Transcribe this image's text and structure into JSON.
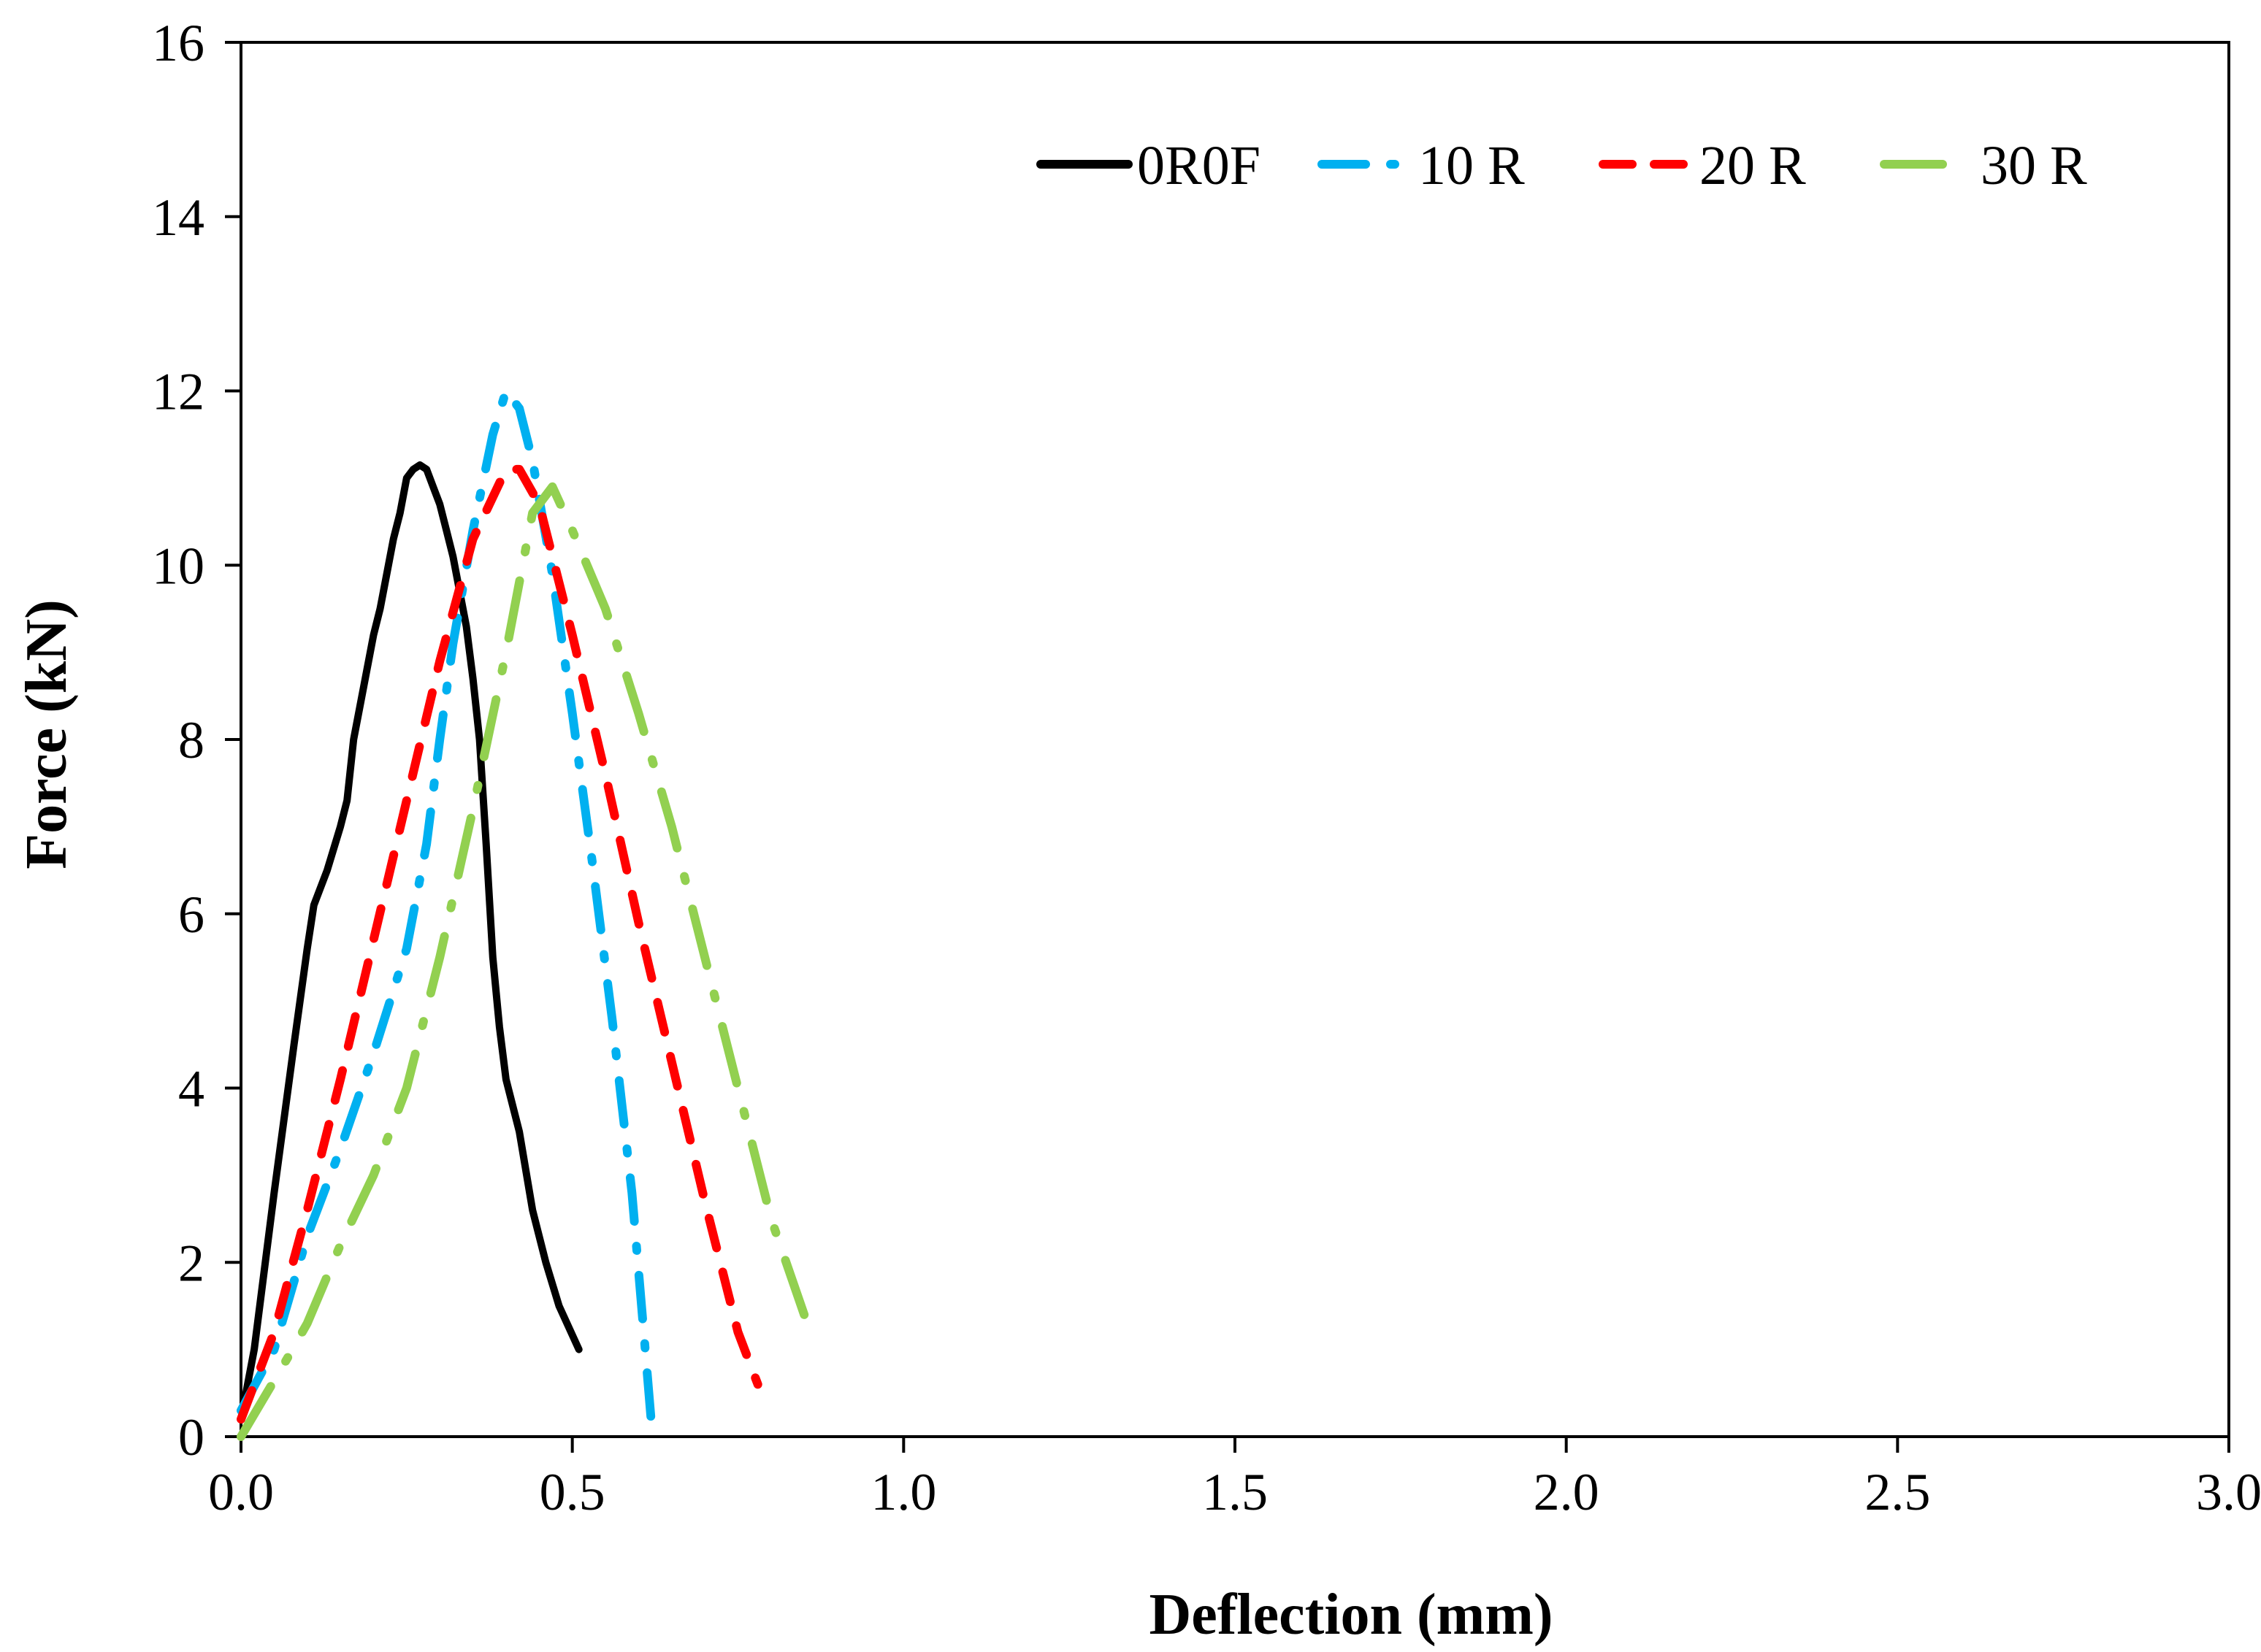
{
  "chart_data": {
    "type": "line",
    "title": "",
    "xlabel": "Deflection (mm)",
    "ylabel": "Force (kN)",
    "xlim": [
      0,
      3
    ],
    "ylim": [
      0,
      16
    ],
    "x_ticks": [
      "0.0",
      "0.5",
      "1.0",
      "1.5",
      "2.0",
      "2.5",
      "3.0"
    ],
    "x_tick_values": [
      0,
      0.5,
      1.0,
      1.5,
      2.0,
      2.5,
      3.0
    ],
    "y_ticks": [
      "0",
      "2",
      "4",
      "6",
      "8",
      "10",
      "12",
      "14",
      "16"
    ],
    "y_tick_values": [
      0,
      2,
      4,
      6,
      8,
      10,
      12,
      14,
      16
    ],
    "grid": false,
    "legend_position": "top-right",
    "series": [
      {
        "name": "0R0F",
        "color": "#000000",
        "style": "solid",
        "x": [
          0.0,
          0.02,
          0.05,
          0.08,
          0.1,
          0.11,
          0.13,
          0.15,
          0.16,
          0.17,
          0.18,
          0.19,
          0.2,
          0.21,
          0.22,
          0.23,
          0.24,
          0.25,
          0.26,
          0.27,
          0.28,
          0.29,
          0.3,
          0.31,
          0.32,
          0.33,
          0.34,
          0.35,
          0.36,
          0.37,
          0.38,
          0.39,
          0.4,
          0.42,
          0.44,
          0.46,
          0.48,
          0.51
        ],
        "y": [
          0.2,
          1.0,
          2.8,
          4.5,
          5.6,
          6.1,
          6.5,
          7.0,
          7.3,
          8.0,
          8.4,
          8.8,
          9.2,
          9.5,
          9.9,
          10.3,
          10.6,
          11.0,
          11.1,
          11.15,
          11.1,
          10.9,
          10.7,
          10.4,
          10.1,
          9.7,
          9.3,
          8.7,
          8.0,
          6.8,
          5.5,
          4.7,
          4.1,
          3.5,
          2.6,
          2.0,
          1.5,
          1.0
        ]
      },
      {
        "name": "10 R",
        "color": "#00B0F0",
        "style": "dash-dot",
        "x": [
          0.0,
          0.05,
          0.1,
          0.15,
          0.2,
          0.25,
          0.28,
          0.3,
          0.32,
          0.35,
          0.38,
          0.4,
          0.42,
          0.44,
          0.47,
          0.5,
          0.53,
          0.56,
          0.59,
          0.61,
          0.62
        ],
        "y": [
          0.3,
          1.0,
          2.3,
          3.3,
          4.4,
          5.6,
          6.8,
          8.0,
          9.1,
          10.4,
          11.5,
          12.0,
          11.8,
          11.2,
          9.9,
          8.3,
          6.6,
          4.8,
          2.8,
          1.0,
          0.1
        ]
      },
      {
        "name": "20 R",
        "color": "#FF0000",
        "style": "dashed",
        "x": [
          0.0,
          0.05,
          0.1,
          0.15,
          0.2,
          0.25,
          0.3,
          0.35,
          0.4,
          0.42,
          0.45,
          0.5,
          0.55,
          0.6,
          0.65,
          0.7,
          0.75,
          0.78
        ],
        "y": [
          0.2,
          1.2,
          2.6,
          4.1,
          5.7,
          7.3,
          8.9,
          10.3,
          11.1,
          11.1,
          10.7,
          9.2,
          7.6,
          5.9,
          4.3,
          2.7,
          1.2,
          0.6
        ]
      },
      {
        "name": "30 R",
        "color": "#92D050",
        "style": "long-dash-dot",
        "x": [
          0.0,
          0.07,
          0.1,
          0.15,
          0.2,
          0.25,
          0.3,
          0.35,
          0.4,
          0.44,
          0.47,
          0.5,
          0.55,
          0.6,
          0.65,
          0.7,
          0.75,
          0.8,
          0.85
        ],
        "y": [
          0.0,
          0.9,
          1.3,
          2.2,
          3.0,
          4.0,
          5.5,
          7.2,
          9.0,
          10.6,
          10.9,
          10.4,
          9.5,
          8.3,
          7.0,
          5.5,
          4.0,
          2.5,
          1.4
        ]
      }
    ]
  }
}
